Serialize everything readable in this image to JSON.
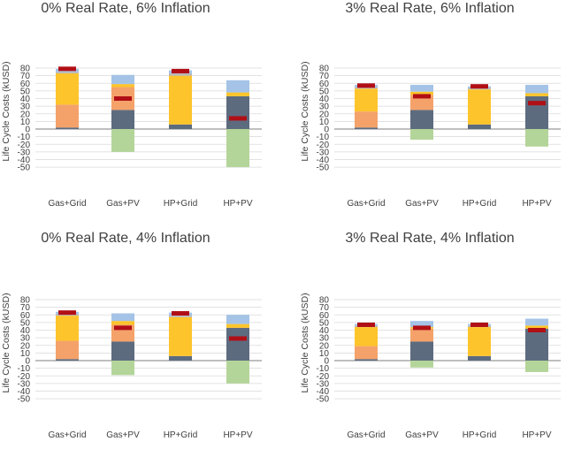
{
  "colors": {
    "gray": "#b8b8b8",
    "slate": "#5d6b7f",
    "orange": "#f4a26a",
    "yellow": "#fdc42b",
    "lightblue": "#a4c3e6",
    "green": "#b4d59a",
    "marker": "#b10f16",
    "grid": "#d9d9d9",
    "axis": "#7f7f7f"
  },
  "chart_data": [
    {
      "type": "bar",
      "stacked": true,
      "title": "0% Real Rate, 6% Inflation",
      "ylabel": "Life Cycle Costs (kUSD)",
      "ylim": [
        -50,
        80
      ],
      "yticks": [
        80,
        70,
        60,
        50,
        40,
        30,
        20,
        10,
        0,
        -10,
        -20,
        -30,
        -40,
        -50
      ],
      "grid": true,
      "categories": [
        "Gas+Grid",
        "Gas+PV",
        "HP+Grid",
        "HP+PV"
      ],
      "bars": [
        {
          "segments": [
            {
              "color": "slate",
              "value": 2
            },
            {
              "color": "orange",
              "value": 30
            },
            {
              "color": "yellow",
              "value": 41
            },
            {
              "color": "gray",
              "value": 2
            },
            {
              "color": "lightblue",
              "value": 4
            }
          ],
          "negative": 0,
          "marker": 79
        },
        {
          "segments": [
            {
              "color": "slate",
              "value": 25
            },
            {
              "color": "orange",
              "value": 30
            },
            {
              "color": "yellow",
              "value": 4
            },
            {
              "color": "lightblue",
              "value": 12
            }
          ],
          "negative": -30,
          "marker": 40
        },
        {
          "segments": [
            {
              "color": "slate",
              "value": 6
            },
            {
              "color": "yellow",
              "value": 64
            },
            {
              "color": "gray",
              "value": 3
            },
            {
              "color": "lightblue",
              "value": 4
            }
          ],
          "negative": 0,
          "marker": 76
        },
        {
          "segments": [
            {
              "color": "slate",
              "value": 43
            },
            {
              "color": "yellow",
              "value": 5
            },
            {
              "color": "lightblue",
              "value": 16
            }
          ],
          "negative": -50,
          "marker": 14
        }
      ]
    },
    {
      "type": "bar",
      "stacked": true,
      "title": "3% Real Rate, 6% Inflation",
      "ylabel": "Life Cycle Costs (kUSD)",
      "ylim": [
        -50,
        80
      ],
      "yticks": [
        80,
        70,
        60,
        50,
        40,
        30,
        20,
        10,
        0,
        -10,
        -20,
        -30,
        -40,
        -50
      ],
      "grid": true,
      "categories": [
        "Gas+Grid",
        "Gas+PV",
        "HP+Grid",
        "HP+PV"
      ],
      "bars": [
        {
          "segments": [
            {
              "color": "slate",
              "value": 2
            },
            {
              "color": "orange",
              "value": 21
            },
            {
              "color": "yellow",
              "value": 30
            },
            {
              "color": "gray",
              "value": 2
            },
            {
              "color": "lightblue",
              "value": 3
            }
          ],
          "negative": 0,
          "marker": 57
        },
        {
          "segments": [
            {
              "color": "slate",
              "value": 25
            },
            {
              "color": "orange",
              "value": 20
            },
            {
              "color": "yellow",
              "value": 4
            },
            {
              "color": "lightblue",
              "value": 9
            }
          ],
          "negative": -14,
          "marker": 43
        },
        {
          "segments": [
            {
              "color": "slate",
              "value": 6
            },
            {
              "color": "yellow",
              "value": 46
            },
            {
              "color": "gray",
              "value": 2
            },
            {
              "color": "lightblue",
              "value": 2
            }
          ],
          "negative": 0,
          "marker": 56
        },
        {
          "segments": [
            {
              "color": "slate",
              "value": 43
            },
            {
              "color": "yellow",
              "value": 4
            },
            {
              "color": "lightblue",
              "value": 11
            }
          ],
          "negative": -23,
          "marker": 34
        }
      ]
    },
    {
      "type": "bar",
      "stacked": true,
      "title": "0% Real Rate, 4% Inflation",
      "ylabel": "Life Cycle Costs (kUSD)",
      "ylim": [
        -50,
        80
      ],
      "yticks": [
        80,
        70,
        60,
        50,
        40,
        30,
        20,
        10,
        0,
        -10,
        -20,
        -30,
        -40,
        -50
      ],
      "grid": true,
      "categories": [
        "Gas+Grid",
        "Gas+PV",
        "HP+Grid",
        "HP+PV"
      ],
      "bars": [
        {
          "segments": [
            {
              "color": "slate",
              "value": 2
            },
            {
              "color": "orange",
              "value": 24
            },
            {
              "color": "yellow",
              "value": 33
            },
            {
              "color": "gray",
              "value": 2
            },
            {
              "color": "lightblue",
              "value": 3
            }
          ],
          "negative": 0,
          "marker": 63
        },
        {
          "segments": [
            {
              "color": "slate",
              "value": 25
            },
            {
              "color": "orange",
              "value": 22
            },
            {
              "color": "yellow",
              "value": 5
            },
            {
              "color": "lightblue",
              "value": 10
            }
          ],
          "negative": -19,
          "marker": 43
        },
        {
          "segments": [
            {
              "color": "slate",
              "value": 6
            },
            {
              "color": "yellow",
              "value": 51
            },
            {
              "color": "gray",
              "value": 2
            },
            {
              "color": "lightblue",
              "value": 4
            }
          ],
          "negative": 0,
          "marker": 62
        },
        {
          "segments": [
            {
              "color": "slate",
              "value": 43
            },
            {
              "color": "yellow",
              "value": 5
            },
            {
              "color": "lightblue",
              "value": 12
            }
          ],
          "negative": -30,
          "marker": 29
        }
      ]
    },
    {
      "type": "bar",
      "stacked": true,
      "title": "3% Real Rate, 4% Inflation",
      "ylabel": "Life Cycle Costs (kUSD)",
      "ylim": [
        -50,
        80
      ],
      "yticks": [
        80,
        70,
        60,
        50,
        40,
        30,
        20,
        10,
        0,
        -10,
        -20,
        -30,
        -40,
        -50
      ],
      "grid": true,
      "categories": [
        "Gas+Grid",
        "Gas+PV",
        "HP+Grid",
        "HP+PV"
      ],
      "bars": [
        {
          "segments": [
            {
              "color": "slate",
              "value": 2
            },
            {
              "color": "orange",
              "value": 17
            },
            {
              "color": "yellow",
              "value": 25
            },
            {
              "color": "gray",
              "value": 2
            },
            {
              "color": "lightblue",
              "value": 2
            }
          ],
          "negative": 0,
          "marker": 47
        },
        {
          "segments": [
            {
              "color": "slate",
              "value": 25
            },
            {
              "color": "orange",
              "value": 17
            },
            {
              "color": "yellow",
              "value": 2
            },
            {
              "color": "lightblue",
              "value": 8
            }
          ],
          "negative": -9,
          "marker": 43
        },
        {
          "segments": [
            {
              "color": "slate",
              "value": 6
            },
            {
              "color": "yellow",
              "value": 38
            },
            {
              "color": "gray",
              "value": 2
            },
            {
              "color": "lightblue",
              "value": 2
            }
          ],
          "negative": 0,
          "marker": 47
        },
        {
          "segments": [
            {
              "color": "slate",
              "value": 42
            },
            {
              "color": "yellow",
              "value": 4
            },
            {
              "color": "lightblue",
              "value": 9
            }
          ],
          "negative": -15,
          "marker": 40
        }
      ]
    }
  ]
}
